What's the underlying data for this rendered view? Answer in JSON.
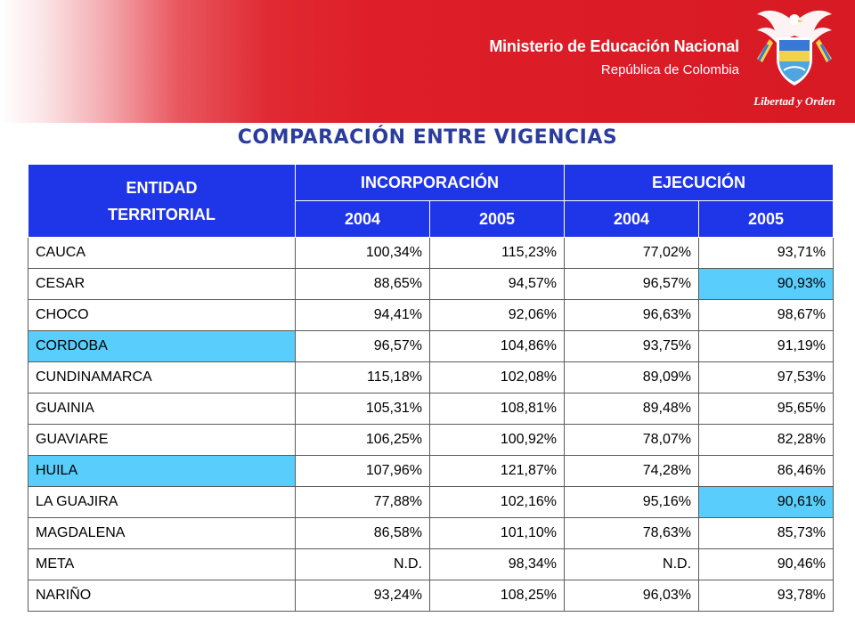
{
  "header": {
    "ministry": "Ministerio de Educación Nacional",
    "country": "República de Colombia",
    "motto": "Libertad y Orden",
    "crest_icon": "colombia-coat-of-arms-icon"
  },
  "title": "COMPARACIÓN ENTRE VIGENCIAS",
  "colors": {
    "banner_red": "#d81a24",
    "header_blue": "#1f35e8",
    "title_blue": "#2b3d9b",
    "highlight_cyan": "#59cdfb"
  },
  "table": {
    "entity_header_line1": "ENTIDAD",
    "entity_header_line2": "TERRITORIAL",
    "groups": [
      "INCORPORACIÓN",
      "EJECUCIÓN"
    ],
    "years": [
      "2004",
      "2005",
      "2004",
      "2005"
    ],
    "rows": [
      {
        "name": "CAUCA",
        "values": [
          "100,34%",
          "115,23%",
          "77,02%",
          "93,71%"
        ],
        "highlight": []
      },
      {
        "name": "CESAR",
        "values": [
          "88,65%",
          "94,57%",
          "96,57%",
          "90,93%"
        ],
        "highlight": [
          4
        ]
      },
      {
        "name": "CHOCO",
        "values": [
          "94,41%",
          "92,06%",
          "96,63%",
          "98,67%"
        ],
        "highlight": []
      },
      {
        "name": "CORDOBA",
        "values": [
          "96,57%",
          "104,86%",
          "93,75%",
          "91,19%"
        ],
        "highlight": [
          0
        ]
      },
      {
        "name": "CUNDINAMARCA",
        "values": [
          "115,18%",
          "102,08%",
          "89,09%",
          "97,53%"
        ],
        "highlight": []
      },
      {
        "name": "GUAINIA",
        "values": [
          "105,31%",
          "108,81%",
          "89,48%",
          "95,65%"
        ],
        "highlight": []
      },
      {
        "name": "GUAVIARE",
        "values": [
          "106,25%",
          "100,92%",
          "78,07%",
          "82,28%"
        ],
        "highlight": []
      },
      {
        "name": "HUILA",
        "values": [
          "107,96%",
          "121,87%",
          "74,28%",
          "86,46%"
        ],
        "highlight": [
          0
        ]
      },
      {
        "name": "LA GUAJIRA",
        "values": [
          "77,88%",
          "102,16%",
          "95,16%",
          "90,61%"
        ],
        "highlight": [
          4
        ]
      },
      {
        "name": "MAGDALENA",
        "values": [
          "86,58%",
          "101,10%",
          "78,63%",
          "85,73%"
        ],
        "highlight": []
      },
      {
        "name": "META",
        "values": [
          "N.D.",
          "98,34%",
          "N.D.",
          "90,46%"
        ],
        "highlight": []
      },
      {
        "name": "NARIÑO",
        "values": [
          "93,24%",
          "108,25%",
          "96,03%",
          "93,78%"
        ],
        "highlight": []
      }
    ]
  }
}
